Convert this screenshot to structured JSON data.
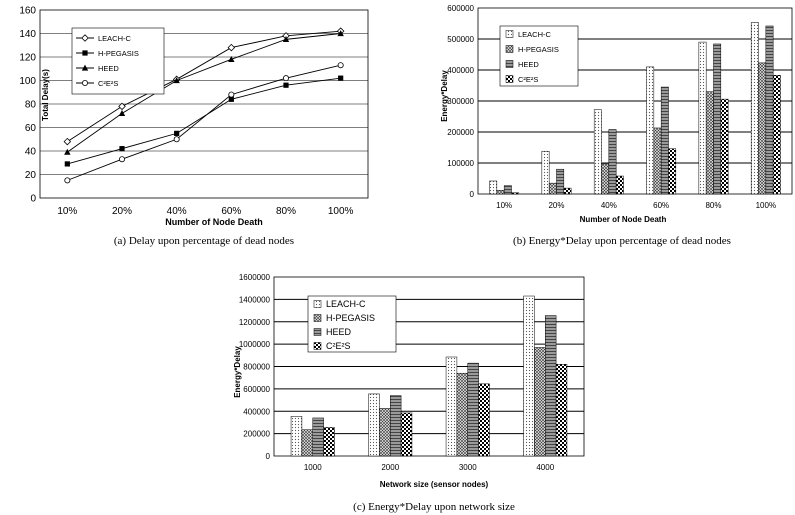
{
  "chart_data": [
    {
      "type": "line",
      "caption": "(a) Delay upon percentage of dead nodes",
      "xlabel": "Number of Node Death",
      "ylabel": "Total Delay(s)",
      "categories": [
        "10%",
        "20%",
        "40%",
        "60%",
        "80%",
        "100%"
      ],
      "ylim": [
        0,
        160
      ],
      "yticks": [
        0,
        20,
        40,
        60,
        80,
        100,
        120,
        140,
        160
      ],
      "ytick_labels": [
        "0",
        "20",
        "40",
        "60",
        "80",
        "100",
        "120",
        "140",
        "160"
      ],
      "grid": "horizontal",
      "legend_position": "top-left",
      "series": [
        {
          "name": "LEACH-C",
          "marker": "diamond",
          "values": [
            48,
            78,
            101,
            128,
            138,
            142
          ]
        },
        {
          "name": "H-PEGASIS",
          "marker": "square",
          "values": [
            29,
            42,
            55,
            84,
            96,
            102
          ]
        },
        {
          "name": "HEED",
          "marker": "triangle",
          "values": [
            39,
            72,
            100,
            118,
            135,
            140
          ]
        },
        {
          "name": "C²E²S",
          "marker": "circle",
          "values": [
            15,
            33,
            50,
            88,
            102,
            113
          ]
        }
      ]
    },
    {
      "type": "bar",
      "caption": "(b) Energy*Delay upon percentage of dead nodes",
      "xlabel": "Number of Node Death",
      "ylabel": "Energy*Delay",
      "categories": [
        "10%",
        "20%",
        "40%",
        "60%",
        "80%",
        "100%"
      ],
      "ylim": [
        0,
        600000
      ],
      "yticks": [
        0,
        100000,
        200000,
        300000,
        400000,
        500000,
        600000
      ],
      "ytick_labels": [
        "0",
        "100000",
        "200000",
        "300000",
        "400000",
        "500000",
        "600000"
      ],
      "grid": "horizontal",
      "legend_position": "top-left",
      "series": [
        {
          "name": "LEACH-C",
          "values": [
            42000,
            138000,
            272000,
            410000,
            490000,
            553000
          ]
        },
        {
          "name": "H-PEGASIS",
          "values": [
            12000,
            35000,
            97000,
            213000,
            330000,
            423000
          ]
        },
        {
          "name": "HEED",
          "values": [
            27000,
            80000,
            208000,
            345000,
            484000,
            542000
          ]
        },
        {
          "name": "C²E²S",
          "values": [
            4000,
            19000,
            58000,
            146000,
            306000,
            383000
          ]
        }
      ]
    },
    {
      "type": "bar",
      "caption": "(c) Energy*Delay upon network size",
      "xlabel": "Network size (sensor nodes)",
      "ylabel": "Energy*Delay",
      "categories": [
        "1000",
        "2000",
        "3000",
        "4000"
      ],
      "ylim": [
        0,
        1600000
      ],
      "yticks": [
        0,
        200000,
        400000,
        600000,
        800000,
        1000000,
        1200000,
        1400000,
        1600000
      ],
      "ytick_labels": [
        "0",
        "200000",
        "400000",
        "600000",
        "800000",
        "1000000",
        "1200000",
        "1400000",
        "1600000"
      ],
      "grid": "horizontal",
      "legend_position": "top-left",
      "series": [
        {
          "name": "LEACH-C",
          "values": [
            355000,
            555000,
            885000,
            1430000
          ]
        },
        {
          "name": "H-PEGASIS",
          "values": [
            235000,
            425000,
            740000,
            970000
          ]
        },
        {
          "name": "HEED",
          "values": [
            340000,
            540000,
            830000,
            1255000
          ]
        },
        {
          "name": "C²E²S",
          "values": [
            255000,
            385000,
            645000,
            820000
          ]
        }
      ]
    }
  ]
}
